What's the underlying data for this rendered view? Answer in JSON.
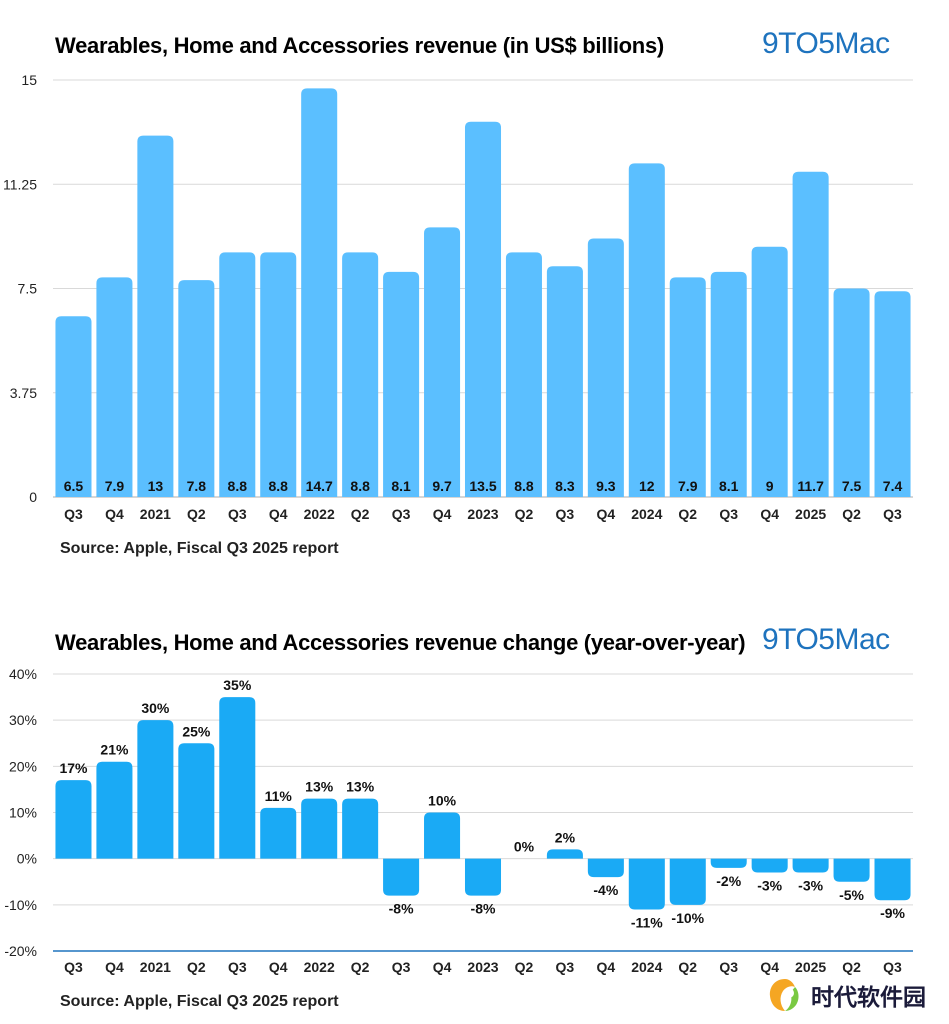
{
  "charts": [
    {
      "title": "Wearables, Home and Accessories revenue (in US$ billions)",
      "logo": "9TO5Mac",
      "source": "Source: Apple, Fiscal Q3 2025 report"
    },
    {
      "title": "Wearables, Home and Accessories revenue change (year-over-year)",
      "logo": "9TO5Mac",
      "source": "Source: Apple, Fiscal Q3 2025 report"
    }
  ],
  "watermark": {
    "text": "时代软件园"
  },
  "chart_data": [
    {
      "type": "bar",
      "title": "Wearables, Home and Accessories revenue (in US$ billions)",
      "xlabel": "",
      "ylabel": "",
      "categories": [
        "Q3",
        "Q4",
        "2021",
        "Q2",
        "Q3",
        "Q4",
        "2022",
        "Q2",
        "Q3",
        "Q4",
        "2023",
        "Q2",
        "Q3",
        "Q4",
        "2024",
        "Q2",
        "Q3",
        "Q4",
        "2025",
        "Q2",
        "Q3"
      ],
      "values": [
        6.5,
        7.9,
        13,
        7.8,
        8.8,
        8.8,
        14.7,
        8.8,
        8.1,
        9.7,
        13.5,
        8.8,
        8.3,
        9.3,
        12,
        7.9,
        8.1,
        9,
        11.7,
        7.5,
        7.4
      ],
      "data_labels": [
        "6.5",
        "7.9",
        "13",
        "7.8",
        "8.8",
        "8.8",
        "14.7",
        "8.8",
        "8.1",
        "9.7",
        "13.5",
        "8.8",
        "8.3",
        "9.3",
        "12",
        "7.9",
        "8.1",
        "9",
        "11.7",
        "7.5",
        "7.4"
      ],
      "ylim": [
        0,
        15
      ],
      "yticks": [
        0,
        3.75,
        7.5,
        11.25,
        15
      ],
      "ytick_labels": [
        "0",
        "3.75",
        "7.5",
        "11.25",
        "15"
      ],
      "grid": true,
      "label_position": "inside-bottom",
      "bar_color": "#5bbfff"
    },
    {
      "type": "bar",
      "title": "Wearables, Home and Accessories revenue change (year-over-year)",
      "xlabel": "",
      "ylabel": "",
      "categories": [
        "Q3",
        "Q4",
        "2021",
        "Q2",
        "Q3",
        "Q4",
        "2022",
        "Q2",
        "Q3",
        "Q4",
        "2023",
        "Q2",
        "Q3",
        "Q4",
        "2024",
        "Q2",
        "Q3",
        "Q4",
        "2025",
        "Q2",
        "Q3"
      ],
      "values": [
        17,
        21,
        30,
        25,
        35,
        11,
        13,
        13,
        -8,
        10,
        -8,
        0,
        2,
        -4,
        -11,
        -10,
        -2,
        -3,
        -3,
        -5,
        -9
      ],
      "data_labels": [
        "17%",
        "21%",
        "30%",
        "25%",
        "35%",
        "11%",
        "13%",
        "13%",
        "-8%",
        "10%",
        "-8%",
        "0%",
        "2%",
        "-4%",
        "-11%",
        "-10%",
        "-2%",
        "-3%",
        "-3%",
        "-5%",
        "-9%"
      ],
      "ylim": [
        -20,
        40
      ],
      "yticks": [
        -20,
        -10,
        0,
        10,
        20,
        30,
        40
      ],
      "ytick_labels": [
        "-20%",
        "-10%",
        "0%",
        "10%",
        "20%",
        "30%",
        "40%"
      ],
      "grid": true,
      "label_position": "outside-end",
      "bar_color": "#1aaaf5"
    }
  ]
}
